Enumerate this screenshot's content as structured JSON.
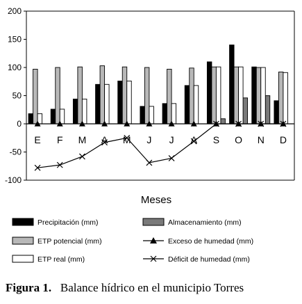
{
  "chart_data": {
    "type": "bar",
    "categories": [
      "E",
      "F",
      "M",
      "A",
      "M",
      "J",
      "J",
      "A",
      "S",
      "O",
      "N",
      "D"
    ],
    "xlabel": "Meses",
    "ylabel": "",
    "ylim": [
      -100,
      200
    ],
    "yticks": [
      -100,
      -50,
      0,
      50,
      100,
      150,
      200
    ],
    "grid": false,
    "legend_position": "bottom",
    "series": [
      {
        "name": "Precipitación (mm)",
        "kind": "bar",
        "color": "#000000",
        "values": [
          18,
          26,
          44,
          70,
          76,
          31,
          36,
          68,
          110,
          140,
          101,
          41
        ]
      },
      {
        "name": "ETP potencial (mm)",
        "kind": "bar",
        "color": "#b8b8b8",
        "values": [
          97,
          100,
          101,
          103,
          101,
          100,
          97,
          99,
          101,
          101,
          100,
          92
        ]
      },
      {
        "name": "ETP real (mm)",
        "kind": "bar",
        "color": "#ffffff",
        "values": [
          18,
          26,
          44,
          70,
          76,
          31,
          36,
          68,
          101,
          101,
          100,
          91
        ]
      },
      {
        "name": "Almacenamiento (mm)",
        "kind": "bar",
        "color": "#7a7a7a",
        "values": [
          0,
          0,
          0,
          0,
          0,
          0,
          0,
          0,
          9,
          46,
          50,
          0
        ]
      },
      {
        "name": "Exceso de humedad (mm)",
        "kind": "line",
        "marker": "triangle",
        "values": [
          0,
          0,
          0,
          0,
          0,
          0,
          0,
          0,
          0,
          0,
          0,
          0
        ]
      },
      {
        "name": "Déficit de humedad (mm)",
        "kind": "line",
        "marker": "x",
        "values": [
          -78,
          -73,
          -58,
          -33,
          -25,
          -69,
          -61,
          -31,
          0,
          0,
          0,
          0
        ]
      }
    ]
  },
  "caption": {
    "label": "Figura 1",
    "text": "Balance hídrico en el municipio Torres"
  }
}
